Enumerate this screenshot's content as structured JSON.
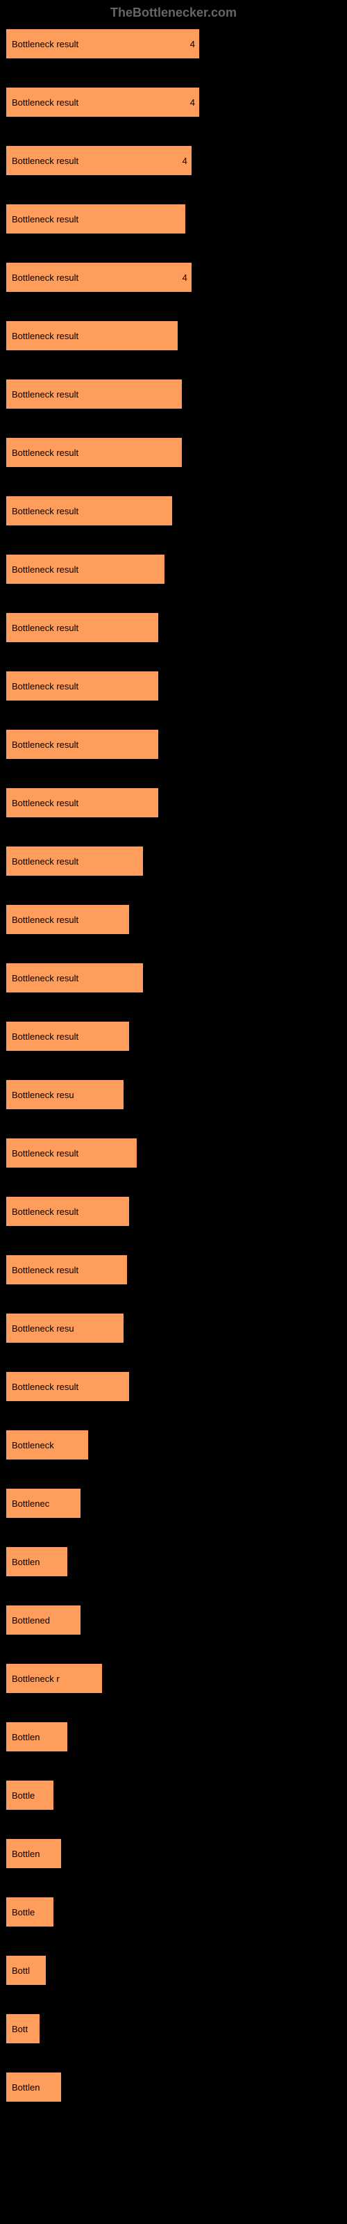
{
  "watermark": "TheBottlenecker.com",
  "chart": {
    "type": "bar",
    "bar_color": "#ff9d5c",
    "background_color": "#000000",
    "text_color": "#000000",
    "max_width": 280,
    "max_value": 47,
    "rows": [
      {
        "label": "Bottleneck result",
        "value": "4",
        "width_pct": 100,
        "show_value_inside": true
      },
      {
        "label": "Bottleneck result",
        "value": "4",
        "width_pct": 100,
        "show_value_inside": true
      },
      {
        "label": "Bottleneck result",
        "value": "4",
        "width_pct": 96,
        "show_value_inside": true
      },
      {
        "label": "Bottleneck result",
        "value": "",
        "width_pct": 93,
        "show_value_inside": false
      },
      {
        "label": "Bottleneck result",
        "value": "4",
        "width_pct": 96,
        "show_value_inside": true
      },
      {
        "label": "Bottleneck result",
        "value": "",
        "width_pct": 89,
        "show_value_inside": false
      },
      {
        "label": "Bottleneck result",
        "value": "",
        "width_pct": 91,
        "show_value_inside": false
      },
      {
        "label": "Bottleneck result",
        "value": "",
        "width_pct": 91,
        "show_value_inside": false
      },
      {
        "label": "Bottleneck result",
        "value": "",
        "width_pct": 86,
        "show_value_inside": false
      },
      {
        "label": "Bottleneck result",
        "value": "",
        "width_pct": 82,
        "show_value_inside": false
      },
      {
        "label": "Bottleneck result",
        "value": "",
        "width_pct": 79,
        "show_value_inside": false
      },
      {
        "label": "Bottleneck result",
        "value": "",
        "width_pct": 79,
        "show_value_inside": false
      },
      {
        "label": "Bottleneck result",
        "value": "",
        "width_pct": 79,
        "show_value_inside": false
      },
      {
        "label": "Bottleneck result",
        "value": "",
        "width_pct": 79,
        "show_value_inside": false
      },
      {
        "label": "Bottleneck result",
        "value": "",
        "width_pct": 71,
        "show_value_inside": false
      },
      {
        "label": "Bottleneck result",
        "value": "",
        "width_pct": 64,
        "show_value_inside": false
      },
      {
        "label": "Bottleneck result",
        "value": "",
        "width_pct": 71,
        "show_value_inside": false
      },
      {
        "label": "Bottleneck result",
        "value": "",
        "width_pct": 64,
        "show_value_inside": false
      },
      {
        "label": "Bottleneck resu",
        "value": "",
        "width_pct": 61,
        "show_value_inside": false
      },
      {
        "label": "Bottleneck result",
        "value": "",
        "width_pct": 68,
        "show_value_inside": false
      },
      {
        "label": "Bottleneck result",
        "value": "",
        "width_pct": 64,
        "show_value_inside": false
      },
      {
        "label": "Bottleneck result",
        "value": "",
        "width_pct": 63,
        "show_value_inside": false
      },
      {
        "label": "Bottleneck resu",
        "value": "",
        "width_pct": 61,
        "show_value_inside": false
      },
      {
        "label": "Bottleneck result",
        "value": "",
        "width_pct": 64,
        "show_value_inside": false
      },
      {
        "label": "Bottleneck",
        "value": "",
        "width_pct": 43,
        "show_value_inside": false
      },
      {
        "label": "Bottlenec",
        "value": "",
        "width_pct": 39,
        "show_value_inside": false
      },
      {
        "label": "Bottlen",
        "value": "",
        "width_pct": 32,
        "show_value_inside": false
      },
      {
        "label": "Bottlened",
        "value": "",
        "width_pct": 39,
        "show_value_inside": false
      },
      {
        "label": "Bottleneck r",
        "value": "",
        "width_pct": 50,
        "show_value_inside": false
      },
      {
        "label": "Bottlen",
        "value": "",
        "width_pct": 32,
        "show_value_inside": false
      },
      {
        "label": "Bottle",
        "value": "",
        "width_pct": 25,
        "show_value_inside": false
      },
      {
        "label": "Bottlen",
        "value": "",
        "width_pct": 29,
        "show_value_inside": false
      },
      {
        "label": "Bottle",
        "value": "",
        "width_pct": 25,
        "show_value_inside": false
      },
      {
        "label": "Bottl",
        "value": "",
        "width_pct": 21,
        "show_value_inside": false
      },
      {
        "label": "Bott",
        "value": "",
        "width_pct": 18,
        "show_value_inside": false
      },
      {
        "label": "Bottlen",
        "value": "",
        "width_pct": 29,
        "show_value_inside": false
      }
    ]
  }
}
